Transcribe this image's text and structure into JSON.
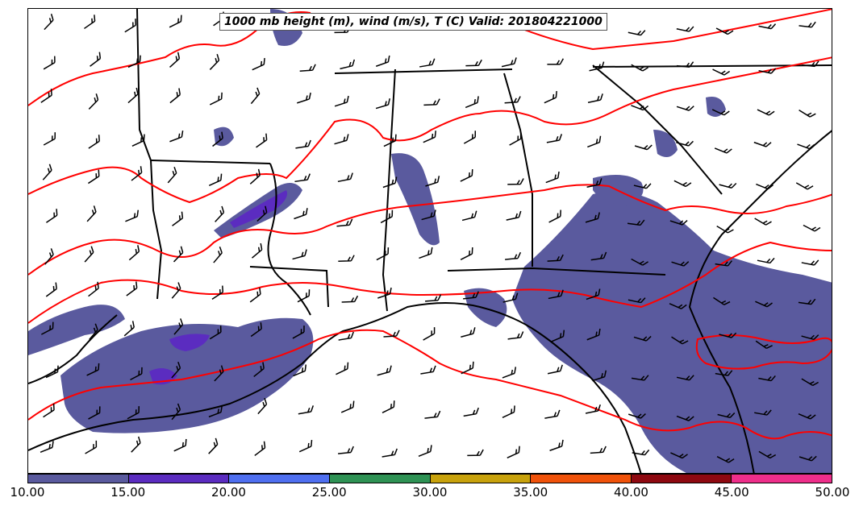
{
  "title": "1000 mb height (m), wind (m/s), T (C) Valid: 201804221000",
  "colorbar": {
    "ticks": [
      "10.00",
      "15.00",
      "20.00",
      "25.00",
      "30.00",
      "35.00",
      "40.00",
      "45.00",
      "50.00"
    ],
    "colors": [
      "#5a5a9e",
      "#5b2cc0",
      "#4f6ff0",
      "#2e9254",
      "#c8a20c",
      "#f0520a",
      "#8e0810",
      "#ee2e8a"
    ]
  },
  "colors": {
    "shading_primary": "#5a5a9e",
    "shading_secondary": "#5b2cc0",
    "temperature_contour": "#ff0000",
    "boundaries": "#000000"
  },
  "map": {
    "shaded_field": "wind speed (m/s)",
    "contour_field": "temperature (C)",
    "barb_field": "wind (m/s)"
  }
}
